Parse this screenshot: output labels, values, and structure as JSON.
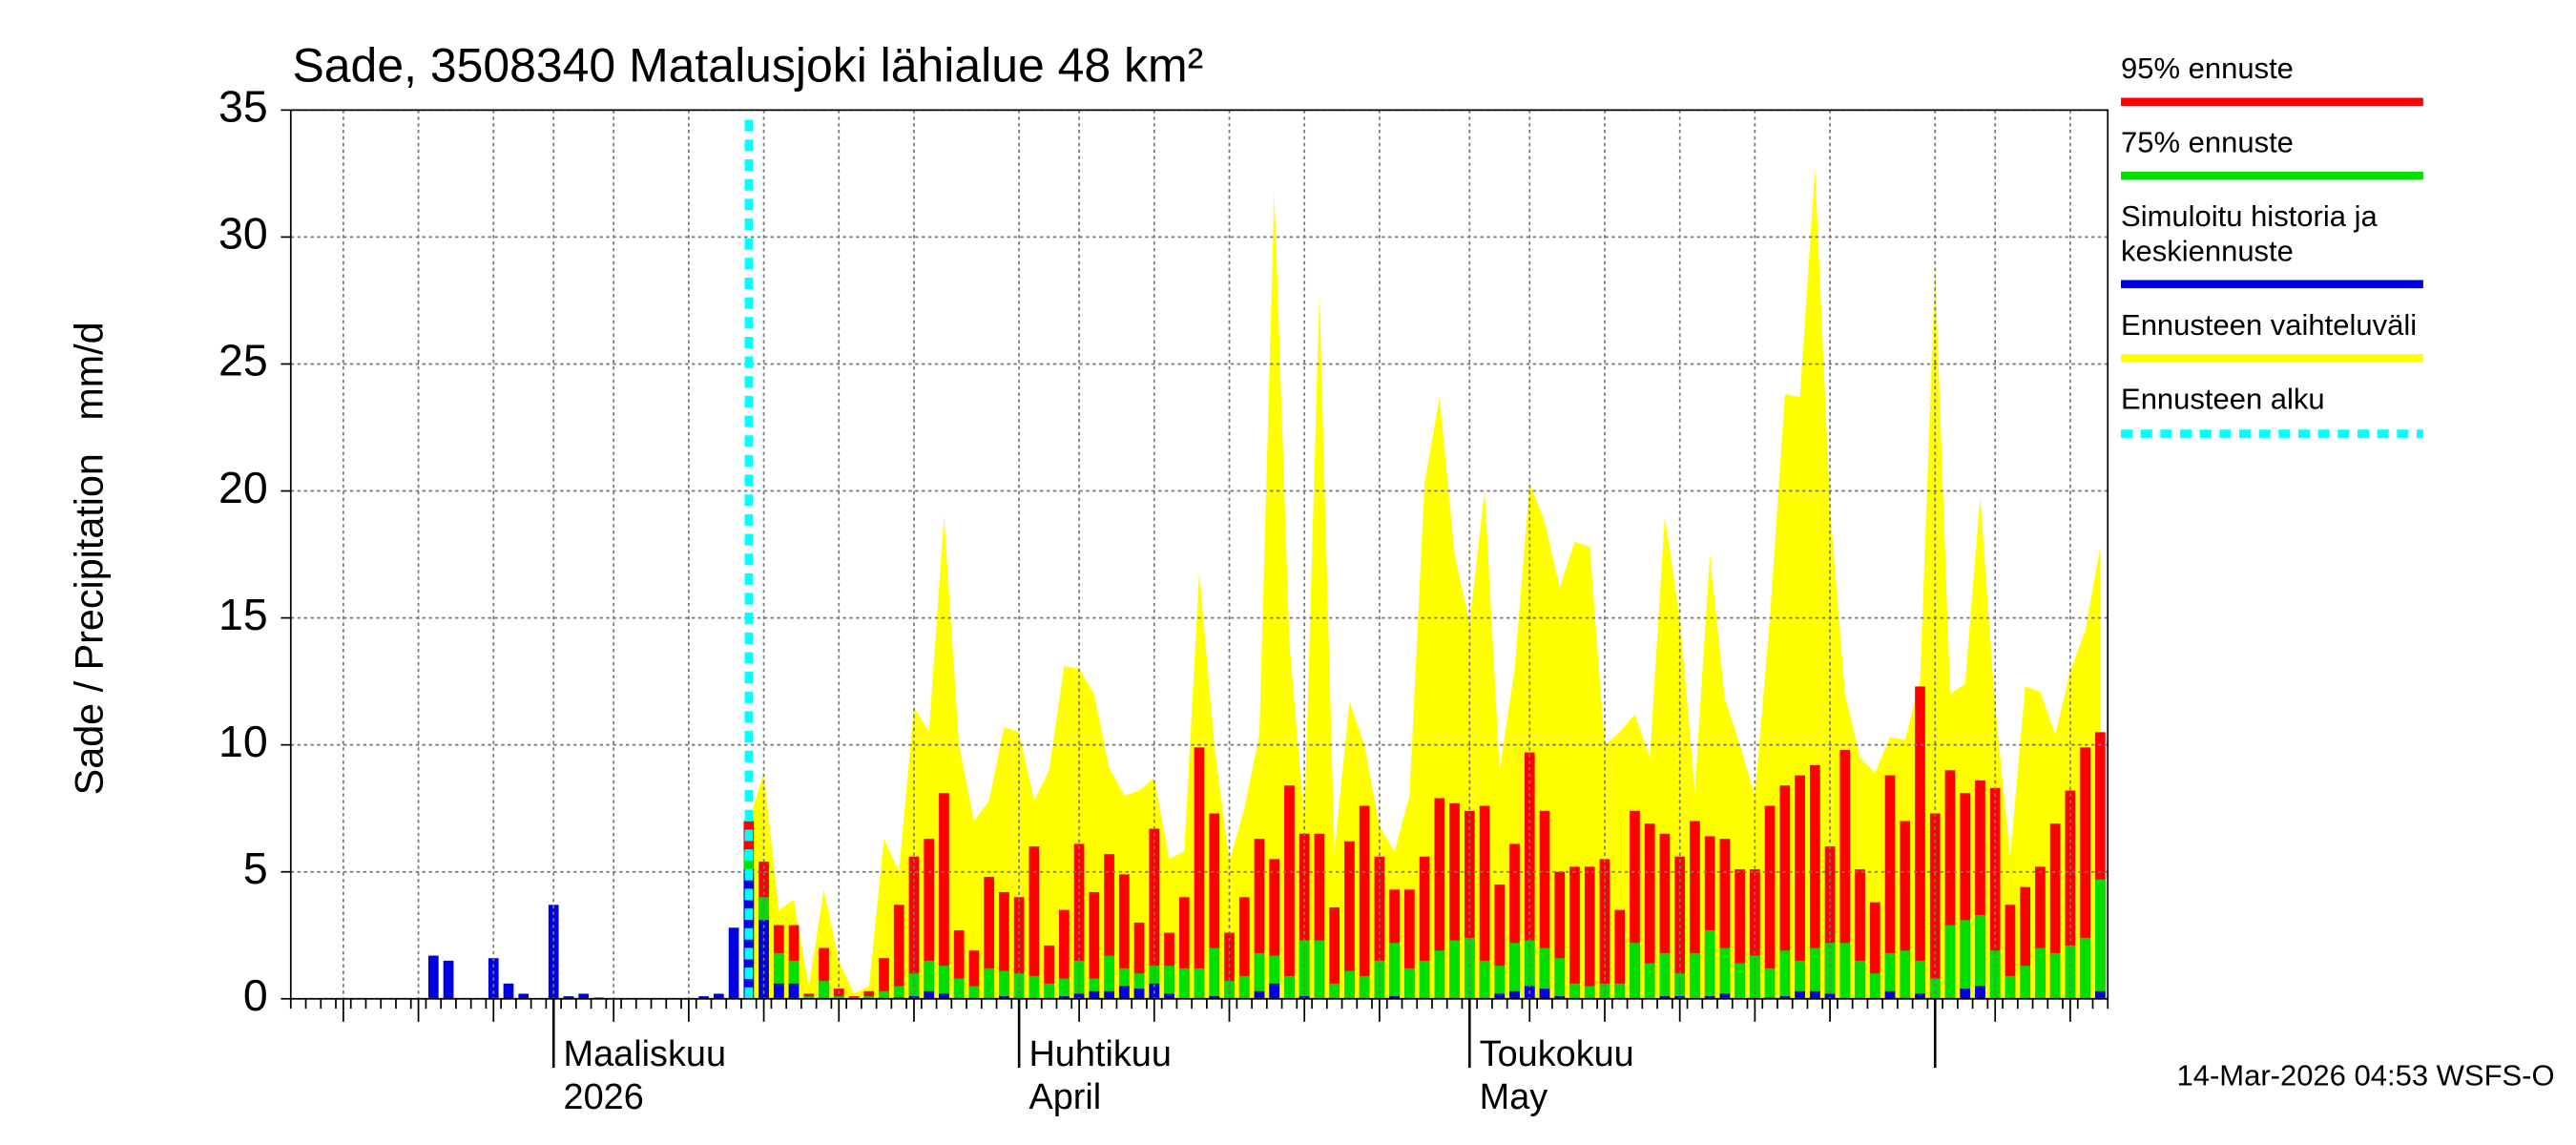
{
  "chart_data": {
    "type": "bar",
    "title": "Sade, 3508340 Matalusjoki lähialue 48 km²",
    "y_label": "Sade / Precipitation   mm/d",
    "footer": "14-Mar-2026 04:53 WSFS-O",
    "ylim": [
      0,
      35
    ],
    "yticks": [
      0,
      5,
      10,
      15,
      20,
      25,
      30,
      35
    ],
    "grid": true,
    "legend": "right",
    "categories": [
      null,
      null,
      null,
      null,
      null,
      null,
      null,
      null,
      null,
      null,
      null,
      null,
      null,
      null,
      null,
      null,
      null,
      [
        "Maaliskuu",
        "2026"
      ],
      null,
      null,
      null,
      null,
      null,
      null,
      null,
      null,
      null,
      null,
      null,
      null,
      null,
      null,
      null,
      null,
      null,
      null,
      null,
      null,
      null,
      null,
      null,
      null,
      null,
      null,
      null,
      null,
      null,
      null,
      [
        "Huhtikuu",
        "April"
      ],
      null,
      null,
      null,
      null,
      null,
      null,
      null,
      null,
      null,
      null,
      null,
      null,
      null,
      null,
      null,
      null,
      null,
      null,
      null,
      null,
      null,
      null,
      null,
      null,
      null,
      null,
      null,
      null,
      null,
      [
        "Toukokuu",
        "May"
      ],
      null,
      null,
      null,
      null,
      null,
      null,
      null,
      null,
      null,
      null,
      null,
      null,
      null,
      null,
      null,
      null,
      null,
      null,
      null,
      null,
      null,
      null,
      null,
      null,
      null,
      null,
      null,
      null,
      null,
      null,
      null,
      null,
      null,
      null,
      null,
      null,
      null,
      null,
      null,
      null,
      null,
      null
    ],
    "series": [
      {
        "name": "95% ennuste",
        "color": "#ff0000",
        "style": "bar",
        "values": [
          null,
          null,
          null,
          null,
          null,
          null,
          null,
          null,
          null,
          null,
          null,
          null,
          null,
          null,
          null,
          null,
          null,
          null,
          null,
          null,
          null,
          null,
          null,
          null,
          null,
          null,
          null,
          null,
          null,
          null,
          7.0,
          5.4,
          2.9,
          2.9,
          0.2,
          2.0,
          0.4,
          0.1,
          0.3,
          1.6,
          3.7,
          5.6,
          6.3,
          8.1,
          2.7,
          1.9,
          4.8,
          4.2,
          4.0,
          6.0,
          2.1,
          3.5,
          6.1,
          4.2,
          5.7,
          4.9,
          3.0,
          6.7,
          2.6,
          4.0,
          9.9,
          7.3,
          2.6,
          4.0,
          6.3,
          5.5,
          8.4,
          6.5,
          6.5,
          3.6,
          6.2,
          7.6,
          5.6,
          4.3,
          4.3,
          5.6,
          7.9,
          7.7,
          7.4,
          7.6,
          4.5,
          6.1,
          9.7,
          7.4,
          5.0,
          5.2,
          5.2,
          5.5,
          3.5,
          7.4,
          6.9,
          6.5,
          5.6,
          7.0,
          6.4,
          6.3,
          5.1,
          5.1,
          7.6,
          8.4,
          8.8,
          9.2,
          6.0,
          9.8,
          5.1,
          3.8,
          8.8,
          7.0,
          12.3,
          7.3,
          9.0,
          8.1,
          8.6,
          8.3,
          3.7,
          4.4,
          5.2,
          6.9,
          8.2,
          9.9,
          10.5
        ]
      },
      {
        "name": "75% ennuste",
        "color": "#00e000",
        "style": "bar",
        "values": [
          null,
          null,
          null,
          null,
          null,
          null,
          null,
          null,
          null,
          null,
          null,
          null,
          null,
          null,
          null,
          null,
          null,
          null,
          null,
          null,
          null,
          null,
          null,
          null,
          null,
          null,
          null,
          null,
          null,
          null,
          5.8,
          4.0,
          1.8,
          1.5,
          0.1,
          0.7,
          0.1,
          0.05,
          0.1,
          0.3,
          0.5,
          1.0,
          1.5,
          1.3,
          0.8,
          0.5,
          1.2,
          1.1,
          1.0,
          0.9,
          0.6,
          0.8,
          1.5,
          0.8,
          1.7,
          1.2,
          1.0,
          1.3,
          1.3,
          1.2,
          1.2,
          2.0,
          0.7,
          0.9,
          1.8,
          1.7,
          0.9,
          2.3,
          2.3,
          0.6,
          1.1,
          0.9,
          1.5,
          2.2,
          1.2,
          1.5,
          1.9,
          2.3,
          2.4,
          1.5,
          1.3,
          2.2,
          2.3,
          2.0,
          1.6,
          0.6,
          0.5,
          0.6,
          0.6,
          2.2,
          1.4,
          1.8,
          1.0,
          1.8,
          2.7,
          2.0,
          1.4,
          1.7,
          1.2,
          1.9,
          1.5,
          2.0,
          2.2,
          2.2,
          1.5,
          1.0,
          1.8,
          1.9,
          1.5,
          0.8,
          2.9,
          3.1,
          3.3,
          1.9,
          0.9,
          1.3,
          2.0,
          1.8,
          2.1,
          2.4,
          4.7
        ]
      },
      {
        "name": [
          "Simuloitu historia ja",
          "keskiennuste"
        ],
        "color": "#0000e0",
        "style": "bar",
        "values": [
          0,
          0,
          0,
          0,
          0,
          0,
          0,
          0,
          0,
          1.7,
          1.5,
          0,
          0,
          1.6,
          0.6,
          0.2,
          0,
          3.7,
          0.1,
          0.2,
          0.05,
          0,
          0,
          0,
          0,
          0,
          0,
          0.1,
          0.2,
          2.8,
          5.1,
          3.1,
          0.6,
          0.6,
          0,
          0,
          0,
          0,
          0,
          0,
          0.05,
          0.1,
          0.3,
          0.2,
          0,
          0,
          0,
          0.1,
          0,
          0,
          0,
          0.1,
          0.2,
          0.3,
          0.3,
          0.5,
          0.4,
          0.6,
          0.2,
          0,
          0,
          0.1,
          0,
          0,
          0.3,
          0.6,
          0,
          0.1,
          0,
          0,
          0,
          0,
          0,
          0.1,
          0,
          0,
          0,
          0,
          0,
          0,
          0.2,
          0.3,
          0.5,
          0.4,
          0.1,
          0,
          0,
          0,
          0,
          0,
          0,
          0.1,
          0.1,
          0,
          0.1,
          0.2,
          0,
          0,
          0.05,
          0.1,
          0.3,
          0.3,
          0.2,
          0,
          0,
          0,
          0.3,
          0,
          0.2,
          0,
          0,
          0.4,
          0.5,
          0,
          0,
          0,
          0,
          0,
          0,
          0,
          0.3
        ]
      },
      {
        "name": "Ennusteen vaihteluväli",
        "color": "#ffff00",
        "style": "area",
        "values": [
          null,
          null,
          null,
          null,
          null,
          null,
          null,
          null,
          null,
          null,
          null,
          null,
          null,
          null,
          null,
          null,
          null,
          null,
          null,
          null,
          null,
          null,
          null,
          null,
          null,
          null,
          null,
          null,
          null,
          null,
          7.0,
          8.9,
          3.5,
          3.9,
          0.5,
          4.3,
          1.5,
          0.2,
          0.5,
          6.3,
          5.0,
          11.5,
          10.5,
          19.0,
          10.0,
          7.0,
          7.8,
          10.7,
          10.5,
          7.8,
          9.0,
          13.1,
          13.0,
          12.0,
          9.1,
          8.0,
          8.2,
          8.7,
          5.5,
          5.8,
          16.8,
          10.0,
          5.4,
          7.5,
          10.4,
          31.8,
          14.0,
          7.0,
          27.8,
          5.8,
          11.7,
          10.0,
          6.8,
          5.8,
          8.0,
          20.3,
          23.7,
          17.5,
          14.8,
          20.0,
          9.0,
          13.0,
          20.3,
          18.8,
          16.2,
          18.0,
          17.8,
          10.0,
          10.5,
          11.2,
          9.5,
          19.0,
          15.0,
          8.2,
          17.5,
          11.8,
          10.0,
          8.0,
          15.0,
          23.8,
          23.7,
          32.7,
          19.4,
          12.0,
          9.5,
          8.9,
          10.3,
          10.2,
          12.5,
          28.8,
          12.0,
          12.4,
          19.8,
          11.5,
          5.6,
          12.3,
          12.1,
          10.4,
          12.9,
          14.5,
          17.8
        ]
      }
    ],
    "forecast_start": {
      "name": "Ennusteen alku",
      "color": "#00ffff",
      "index": 30
    }
  }
}
